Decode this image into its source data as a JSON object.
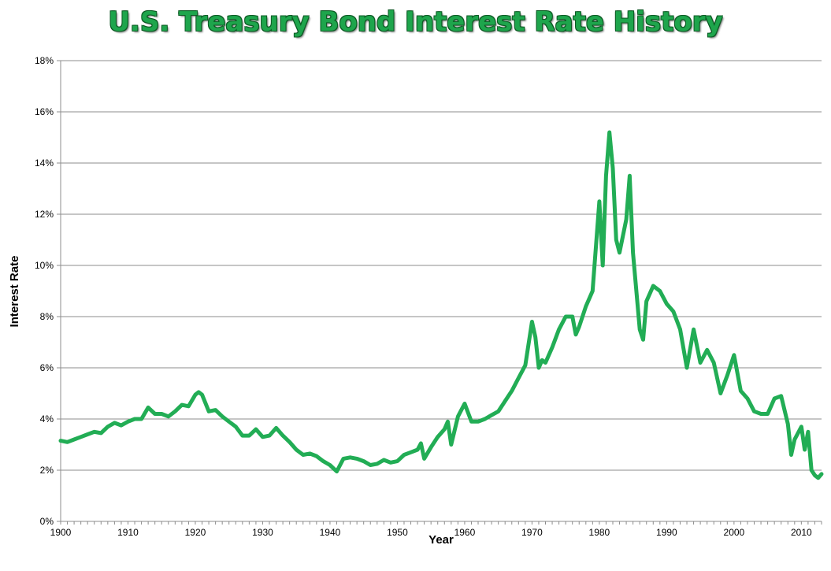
{
  "chart_data": {
    "type": "line",
    "title": "U.S. Treasury Bond Interest Rate History",
    "xlabel": "Year",
    "ylabel": "Interest Rate",
    "xlim": [
      1900,
      2013
    ],
    "ylim": [
      0,
      18
    ],
    "x_ticks": [
      1900,
      1910,
      1920,
      1930,
      1940,
      1950,
      1960,
      1970,
      1980,
      1990,
      2000,
      2010
    ],
    "y_ticks": [
      0,
      2,
      4,
      6,
      8,
      10,
      12,
      14,
      16,
      18
    ],
    "y_tick_labels": [
      "0%",
      "2%",
      "4%",
      "6%",
      "8%",
      "10%",
      "12%",
      "14%",
      "16%",
      "18%"
    ],
    "grid": "horizontal",
    "legend": "none",
    "line_color": "#22ad55",
    "series": [
      {
        "x": [
          1900,
          1901,
          1902,
          1903,
          1904,
          1905,
          1906,
          1907,
          1908,
          1909,
          1910,
          1911,
          1912,
          1913,
          1914,
          1915,
          1916,
          1917,
          1918,
          1919,
          1920,
          1920.5,
          1921,
          1922,
          1923,
          1924,
          1925,
          1926,
          1927,
          1928,
          1929,
          1930,
          1931,
          1932,
          1933,
          1934,
          1935,
          1936,
          1937,
          1938,
          1939,
          1940,
          1941,
          1942,
          1943,
          1944,
          1945,
          1946,
          1947,
          1948,
          1949,
          1950,
          1951,
          1952,
          1953,
          1953.5,
          1954,
          1955,
          1956,
          1957,
          1957.5,
          1958,
          1959,
          1960,
          1961,
          1962,
          1963,
          1964,
          1965,
          1966,
          1967,
          1968,
          1969,
          1970,
          1970.5,
          1971,
          1971.5,
          1972,
          1973,
          1974,
          1975,
          1976,
          1976.5,
          1977,
          1978,
          1979,
          1980,
          1980.5,
          1981,
          1981.5,
          1982,
          1982.5,
          1983,
          1984,
          1984.5,
          1985,
          1986,
          1986.5,
          1987,
          1988,
          1989,
          1990,
          1991,
          1992,
          1993,
          1994,
          1995,
          1996,
          1997,
          1998,
          1999,
          2000,
          2001,
          2002,
          2003,
          2004,
          2005,
          2006,
          2007,
          2008,
          2008.5,
          2009,
          2010,
          2010.5,
          2011,
          2011.5,
          2012,
          2012.5,
          2013
        ],
        "y": [
          3.15,
          3.1,
          3.2,
          3.3,
          3.4,
          3.5,
          3.45,
          3.7,
          3.85,
          3.75,
          3.9,
          4.0,
          4.0,
          4.45,
          4.2,
          4.2,
          4.1,
          4.3,
          4.55,
          4.5,
          4.95,
          5.05,
          4.95,
          4.3,
          4.35,
          4.1,
          3.9,
          3.7,
          3.35,
          3.35,
          3.6,
          3.3,
          3.35,
          3.65,
          3.35,
          3.1,
          2.8,
          2.6,
          2.65,
          2.55,
          2.35,
          2.2,
          1.95,
          2.45,
          2.5,
          2.45,
          2.35,
          2.2,
          2.25,
          2.4,
          2.3,
          2.35,
          2.6,
          2.7,
          2.8,
          3.05,
          2.45,
          2.9,
          3.3,
          3.6,
          3.9,
          3.0,
          4.1,
          4.6,
          3.9,
          3.9,
          4.0,
          4.15,
          4.3,
          4.7,
          5.1,
          5.6,
          6.1,
          7.8,
          7.2,
          6.0,
          6.3,
          6.2,
          6.8,
          7.5,
          8.0,
          8.0,
          7.3,
          7.6,
          8.4,
          9.0,
          12.5,
          10.0,
          13.5,
          15.2,
          13.8,
          11.0,
          10.5,
          11.8,
          13.5,
          10.5,
          7.5,
          7.1,
          8.6,
          9.2,
          9.0,
          8.5,
          8.2,
          7.5,
          6.0,
          7.5,
          6.2,
          6.7,
          6.2,
          5.0,
          5.7,
          6.5,
          5.1,
          4.8,
          4.3,
          4.2,
          4.2,
          4.8,
          4.9,
          3.8,
          2.6,
          3.2,
          3.7,
          2.8,
          3.5,
          2.0,
          1.8,
          1.7,
          1.85
        ]
      }
    ]
  }
}
